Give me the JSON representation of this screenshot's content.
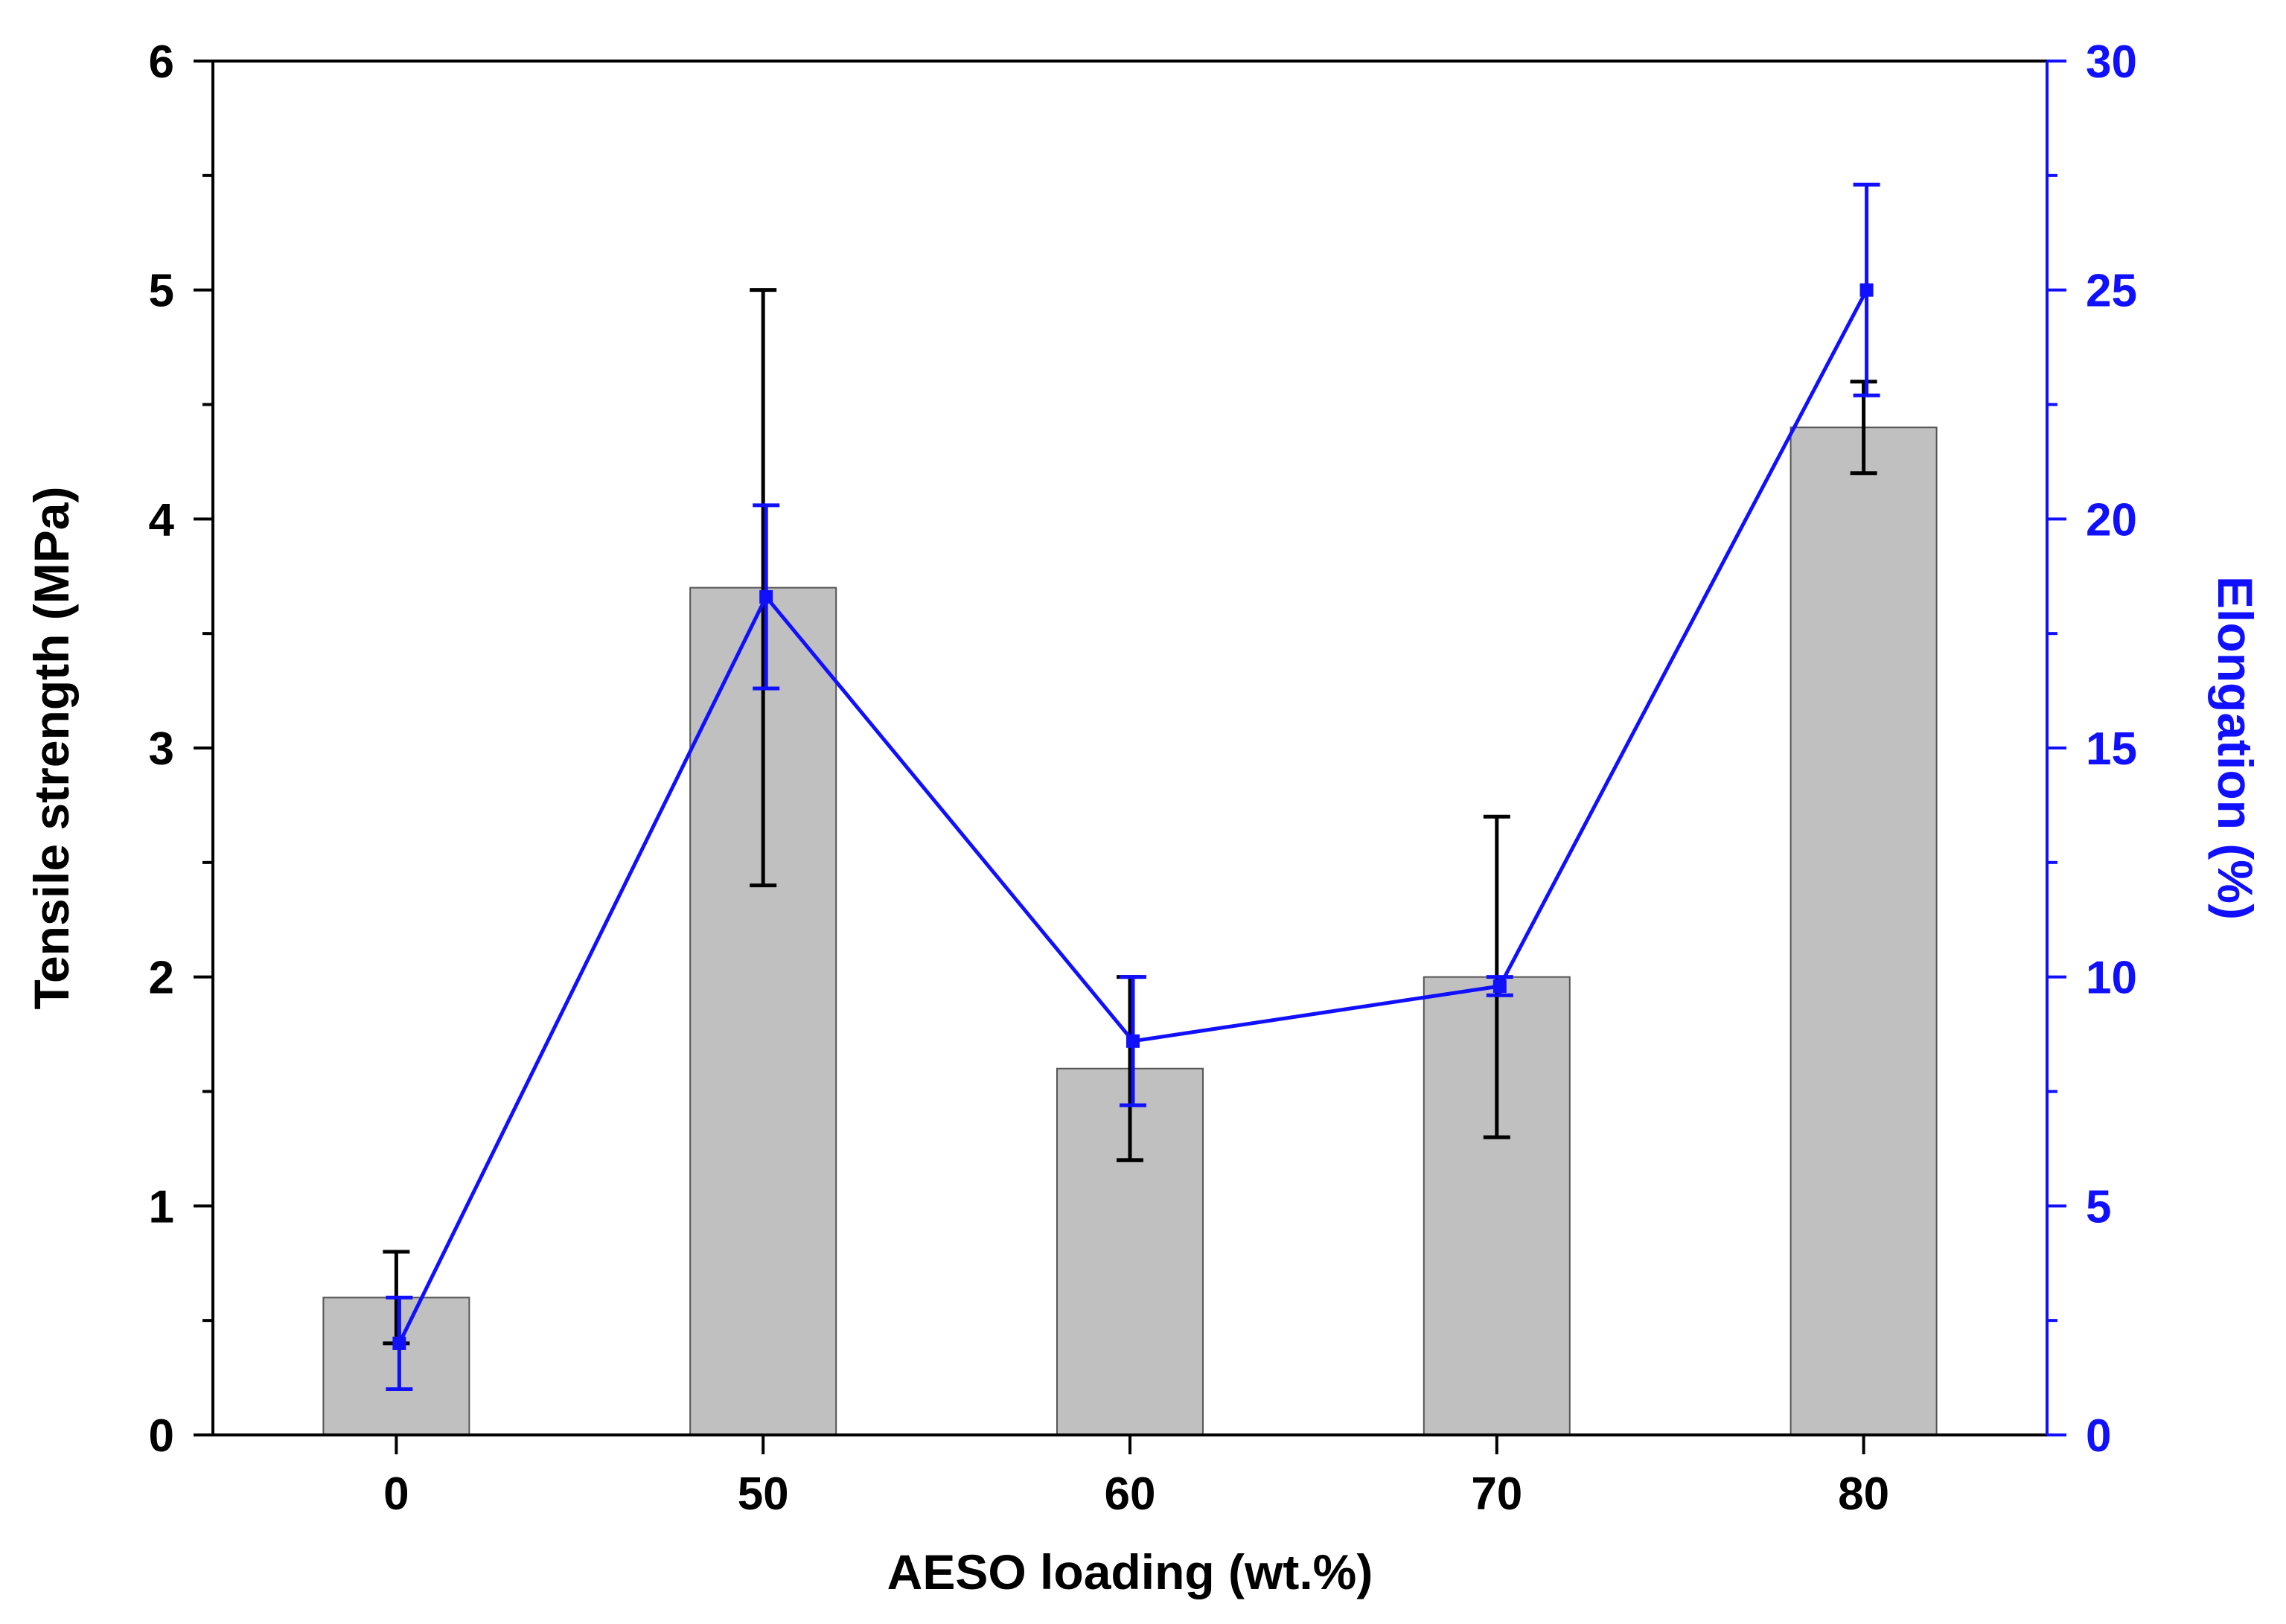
{
  "chart_data": {
    "type": "bar+line",
    "categories": [
      "0",
      "50",
      "60",
      "70",
      "80"
    ],
    "xlabel": "AESO loading (wt.%)",
    "left_axis": {
      "label": "Tensile strength (MPa)",
      "ylim": [
        0,
        6
      ],
      "ticks": [
        0,
        1,
        2,
        3,
        4,
        5,
        6
      ],
      "color": "#000000"
    },
    "right_axis": {
      "label": "Elongation (%)",
      "ylim": [
        0,
        30
      ],
      "ticks": [
        0,
        5,
        10,
        15,
        20,
        25,
        30
      ],
      "color": "#1010ff"
    },
    "series": [
      {
        "name": "Tensile strength",
        "type": "bar",
        "axis": "left",
        "values": [
          0.6,
          3.7,
          1.6,
          2.0,
          4.4
        ],
        "error_low": [
          0.4,
          2.4,
          1.2,
          1.3,
          4.2
        ],
        "error_high": [
          0.8,
          5.0,
          2.0,
          2.7,
          4.6
        ],
        "fill": "#c0c0c0",
        "stroke": "#555555"
      },
      {
        "name": "Elongation",
        "type": "line",
        "axis": "right",
        "values": [
          2.0,
          18.3,
          8.6,
          9.8,
          25.0
        ],
        "error_low": [
          1.0,
          16.3,
          7.2,
          9.6,
          22.7
        ],
        "error_high": [
          3.0,
          20.3,
          10.0,
          10.0,
          27.3
        ],
        "color": "#1010ff"
      }
    ]
  }
}
